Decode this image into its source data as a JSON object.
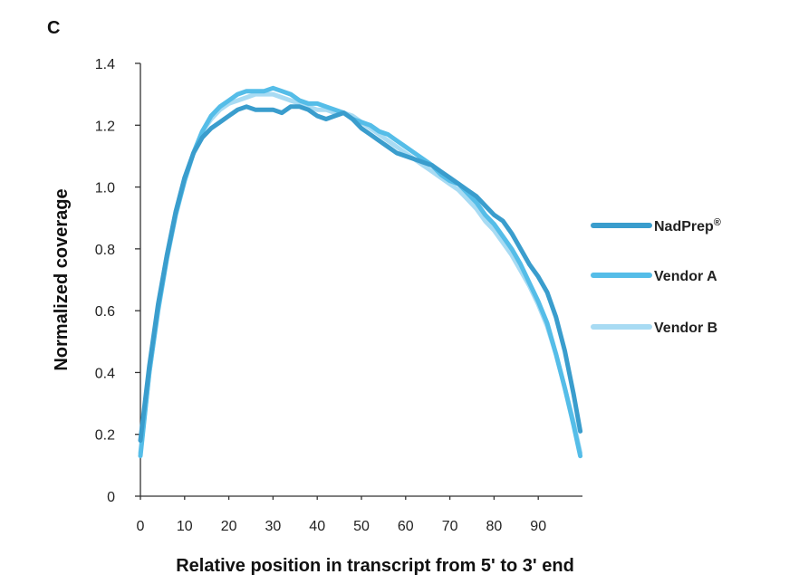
{
  "panel_label": "C",
  "chart_data": {
    "type": "line",
    "title": "",
    "xlabel": "Relative position in transcript from 5' to 3' end",
    "ylabel": "Normalized coverage",
    "xlim": [
      0,
      100
    ],
    "ylim": [
      0,
      1.4
    ],
    "x_ticks": [
      0,
      10,
      20,
      30,
      40,
      50,
      60,
      70,
      80,
      90
    ],
    "x_tick_labels": [
      "0",
      "10",
      "20",
      "30",
      "40",
      "50",
      "60",
      "70",
      "80",
      "90"
    ],
    "y_ticks": [
      0,
      0.2,
      0.4,
      0.6,
      0.8,
      1.0,
      1.2,
      1.4
    ],
    "y_tick_labels": [
      "0",
      "0.2",
      "0.4",
      "0.6",
      "0.8",
      "1.0",
      "1.2",
      "1.4"
    ],
    "grid": false,
    "legend_position": "right",
    "x": [
      0,
      2,
      4,
      6,
      8,
      10,
      12,
      14,
      16,
      18,
      20,
      22,
      24,
      26,
      28,
      30,
      32,
      34,
      36,
      38,
      40,
      42,
      44,
      46,
      48,
      50,
      52,
      54,
      56,
      58,
      60,
      62,
      64,
      66,
      68,
      70,
      72,
      74,
      76,
      78,
      80,
      82,
      84,
      86,
      88,
      90,
      92,
      94,
      96,
      98,
      99.5
    ],
    "series": [
      {
        "name": "NadPrep",
        "legend_label": "NadPrep",
        "legend_mark": "®",
        "color": "#3a9dcd",
        "values": [
          0.18,
          0.42,
          0.62,
          0.78,
          0.92,
          1.03,
          1.11,
          1.16,
          1.19,
          1.21,
          1.23,
          1.25,
          1.26,
          1.25,
          1.25,
          1.25,
          1.24,
          1.26,
          1.26,
          1.25,
          1.23,
          1.22,
          1.23,
          1.24,
          1.22,
          1.19,
          1.17,
          1.15,
          1.13,
          1.11,
          1.1,
          1.09,
          1.08,
          1.07,
          1.05,
          1.03,
          1.01,
          0.99,
          0.97,
          0.94,
          0.91,
          0.89,
          0.85,
          0.8,
          0.75,
          0.71,
          0.66,
          0.58,
          0.47,
          0.33,
          0.21
        ]
      },
      {
        "name": "Vendor A",
        "legend_label": "Vendor A",
        "legend_mark": "",
        "color": "#55bde8",
        "values": [
          0.13,
          0.4,
          0.6,
          0.77,
          0.91,
          1.02,
          1.11,
          1.18,
          1.23,
          1.26,
          1.28,
          1.3,
          1.31,
          1.31,
          1.31,
          1.32,
          1.31,
          1.3,
          1.28,
          1.27,
          1.27,
          1.26,
          1.25,
          1.24,
          1.22,
          1.21,
          1.2,
          1.18,
          1.17,
          1.15,
          1.13,
          1.11,
          1.09,
          1.07,
          1.04,
          1.02,
          1.01,
          0.98,
          0.95,
          0.91,
          0.88,
          0.84,
          0.8,
          0.75,
          0.69,
          0.63,
          0.56,
          0.46,
          0.35,
          0.23,
          0.13
        ]
      },
      {
        "name": "Vendor B",
        "legend_label": "Vendor B",
        "legend_mark": "",
        "color": "#a8dbf3",
        "values": [
          0.14,
          0.4,
          0.61,
          0.78,
          0.92,
          1.03,
          1.11,
          1.18,
          1.22,
          1.25,
          1.27,
          1.28,
          1.29,
          1.3,
          1.3,
          1.3,
          1.29,
          1.28,
          1.27,
          1.26,
          1.25,
          1.25,
          1.24,
          1.24,
          1.23,
          1.21,
          1.19,
          1.17,
          1.15,
          1.13,
          1.11,
          1.09,
          1.07,
          1.05,
          1.03,
          1.01,
          0.99,
          0.96,
          0.93,
          0.89,
          0.86,
          0.82,
          0.78,
          0.73,
          0.68,
          0.62,
          0.55,
          0.46,
          0.35,
          0.24,
          0.14
        ]
      }
    ]
  }
}
